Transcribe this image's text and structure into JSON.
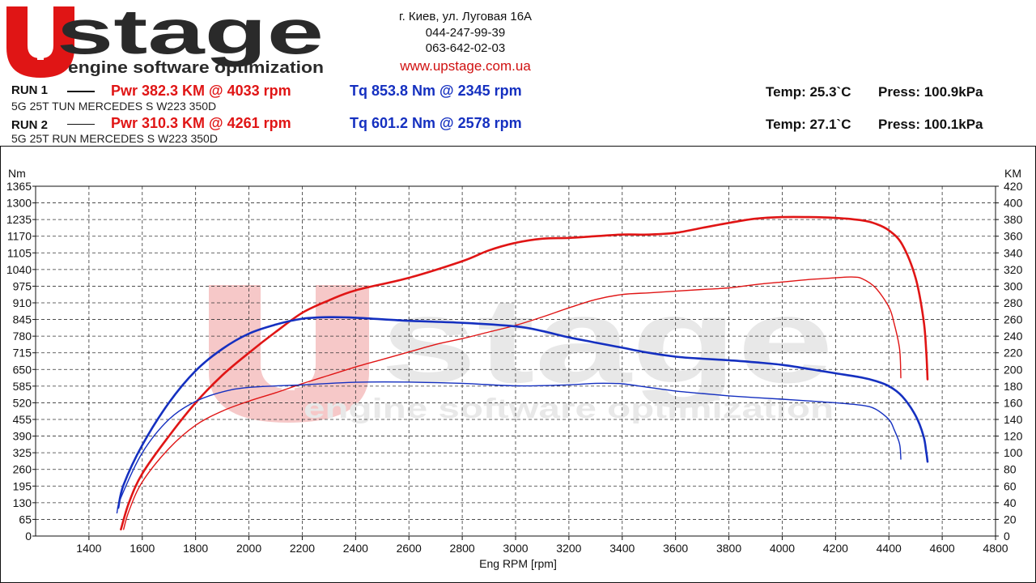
{
  "header": {
    "brand": "Upstage",
    "logo_text": "stage",
    "logo_tagline": "engine software optimization",
    "address": "г. Киев, ул. Луговая 16А",
    "phone1": "044-247-99-39",
    "phone2": "063-642-02-03",
    "website": "www.upstage.com.ua"
  },
  "runs": [
    {
      "label": "RUN 1",
      "pwr": "Pwr  382.3 KM @ 4033 rpm",
      "tq": "Tq 853.8 Nm @ 2345 rpm",
      "desc": "5G 25T TUN MERCEDES S W223 350D",
      "temp": "Temp: 25.3`C",
      "press": "Press: 100.9kPa"
    },
    {
      "label": "RUN 2",
      "pwr": "Pwr  310.3 KM @ 4261 rpm",
      "tq": "Tq 601.2 Nm @ 2578 rpm",
      "desc": "5G 25T RUN MERCEDES S W223 350D",
      "temp": "Temp: 27.1`C",
      "press": "Press: 100.1kPa"
    }
  ],
  "colors": {
    "power": "#e01515",
    "torque": "#1530c0",
    "watermark": "#e8e8e8",
    "watermark_red": "#f6c8c8"
  },
  "chart_data": {
    "type": "line",
    "xlabel": "Eng RPM [rpm]",
    "ylabel_left": "Nm",
    "ylabel_right": "KM",
    "xlim": [
      1200,
      4800
    ],
    "ylim_left": [
      0,
      1365
    ],
    "ylim_right": [
      0,
      420
    ],
    "x_ticks": [
      1400,
      1600,
      1800,
      2000,
      2200,
      2400,
      2600,
      2800,
      3000,
      3200,
      3400,
      3600,
      3800,
      4000,
      4200,
      4400,
      4600,
      4800
    ],
    "y_ticks_left": [
      0,
      65,
      130,
      195,
      260,
      325,
      390,
      455,
      520,
      585,
      650,
      715,
      780,
      845,
      910,
      975,
      1040,
      1105,
      1170,
      1235,
      1300,
      1365
    ],
    "y_ticks_right": [
      0,
      20,
      40,
      60,
      80,
      100,
      120,
      140,
      160,
      180,
      200,
      220,
      240,
      260,
      280,
      300,
      320,
      340,
      360,
      380,
      400,
      420
    ],
    "grid": true,
    "series": [
      {
        "run": "RUN 1",
        "kind": "power",
        "axis": "right",
        "color": "#e01515",
        "width": 2.6,
        "points": [
          [
            1520,
            8
          ],
          [
            1550,
            40
          ],
          [
            1600,
            75
          ],
          [
            1700,
            120
          ],
          [
            1800,
            160
          ],
          [
            1900,
            193
          ],
          [
            2000,
            220
          ],
          [
            2100,
            245
          ],
          [
            2200,
            268
          ],
          [
            2300,
            283
          ],
          [
            2400,
            295
          ],
          [
            2600,
            310
          ],
          [
            2800,
            330
          ],
          [
            2900,
            343
          ],
          [
            3000,
            352
          ],
          [
            3100,
            357
          ],
          [
            3200,
            358
          ],
          [
            3300,
            360
          ],
          [
            3400,
            362
          ],
          [
            3500,
            362
          ],
          [
            3600,
            364
          ],
          [
            3700,
            370
          ],
          [
            3800,
            376
          ],
          [
            3900,
            381
          ],
          [
            4000,
            383
          ],
          [
            4100,
            383
          ],
          [
            4200,
            382
          ],
          [
            4300,
            379
          ],
          [
            4350,
            375
          ],
          [
            4400,
            367
          ],
          [
            4450,
            350
          ],
          [
            4500,
            310
          ],
          [
            4530,
            260
          ],
          [
            4540,
            223
          ],
          [
            4545,
            188
          ]
        ]
      },
      {
        "run": "RUN 2",
        "kind": "power",
        "axis": "right",
        "color": "#e01515",
        "width": 1.4,
        "points": [
          [
            1530,
            8
          ],
          [
            1550,
            30
          ],
          [
            1600,
            65
          ],
          [
            1700,
            105
          ],
          [
            1800,
            133
          ],
          [
            1900,
            150
          ],
          [
            2000,
            162
          ],
          [
            2100,
            172
          ],
          [
            2200,
            183
          ],
          [
            2300,
            193
          ],
          [
            2400,
            203
          ],
          [
            2500,
            212
          ],
          [
            2600,
            221
          ],
          [
            2700,
            230
          ],
          [
            2800,
            237
          ],
          [
            2900,
            245
          ],
          [
            3000,
            253
          ],
          [
            3100,
            263
          ],
          [
            3200,
            274
          ],
          [
            3300,
            284
          ],
          [
            3400,
            290
          ],
          [
            3500,
            292
          ],
          [
            3600,
            294
          ],
          [
            3700,
            296
          ],
          [
            3800,
            298
          ],
          [
            3900,
            302
          ],
          [
            4000,
            305
          ],
          [
            4100,
            308
          ],
          [
            4200,
            310
          ],
          [
            4260,
            311
          ],
          [
            4300,
            309
          ],
          [
            4350,
            298
          ],
          [
            4400,
            275
          ],
          [
            4420,
            255
          ],
          [
            4440,
            225
          ],
          [
            4445,
            190
          ]
        ]
      },
      {
        "run": "RUN 1",
        "kind": "torque",
        "axis": "left",
        "color": "#1530c0",
        "width": 2.6,
        "points": [
          [
            1510,
            110
          ],
          [
            1530,
            200
          ],
          [
            1600,
            355
          ],
          [
            1700,
            520
          ],
          [
            1800,
            645
          ],
          [
            1900,
            730
          ],
          [
            2000,
            790
          ],
          [
            2100,
            825
          ],
          [
            2200,
            848
          ],
          [
            2300,
            854
          ],
          [
            2400,
            852
          ],
          [
            2600,
            840
          ],
          [
            2800,
            832
          ],
          [
            3000,
            818
          ],
          [
            3100,
            800
          ],
          [
            3200,
            775
          ],
          [
            3300,
            755
          ],
          [
            3400,
            735
          ],
          [
            3500,
            715
          ],
          [
            3600,
            700
          ],
          [
            3700,
            692
          ],
          [
            3800,
            686
          ],
          [
            3900,
            678
          ],
          [
            4000,
            668
          ],
          [
            4100,
            652
          ],
          [
            4200,
            635
          ],
          [
            4300,
            618
          ],
          [
            4350,
            605
          ],
          [
            4400,
            585
          ],
          [
            4450,
            545
          ],
          [
            4500,
            470
          ],
          [
            4530,
            390
          ],
          [
            4540,
            330
          ],
          [
            4545,
            290
          ]
        ]
      },
      {
        "run": "RUN 2",
        "kind": "torque",
        "axis": "left",
        "color": "#1530c0",
        "width": 1.4,
        "points": [
          [
            1505,
            90
          ],
          [
            1520,
            150
          ],
          [
            1600,
            325
          ],
          [
            1700,
            455
          ],
          [
            1800,
            525
          ],
          [
            1900,
            562
          ],
          [
            2000,
            580
          ],
          [
            2200,
            590
          ],
          [
            2400,
            600
          ],
          [
            2578,
            601
          ],
          [
            2800,
            596
          ],
          [
            3000,
            586
          ],
          [
            3200,
            590
          ],
          [
            3300,
            596
          ],
          [
            3400,
            594
          ],
          [
            3500,
            580
          ],
          [
            3600,
            566
          ],
          [
            3700,
            556
          ],
          [
            3800,
            547
          ],
          [
            3900,
            540
          ],
          [
            4000,
            534
          ],
          [
            4100,
            527
          ],
          [
            4200,
            520
          ],
          [
            4300,
            510
          ],
          [
            4350,
            495
          ],
          [
            4400,
            455
          ],
          [
            4420,
            415
          ],
          [
            4440,
            360
          ],
          [
            4445,
            300
          ]
        ]
      }
    ]
  }
}
